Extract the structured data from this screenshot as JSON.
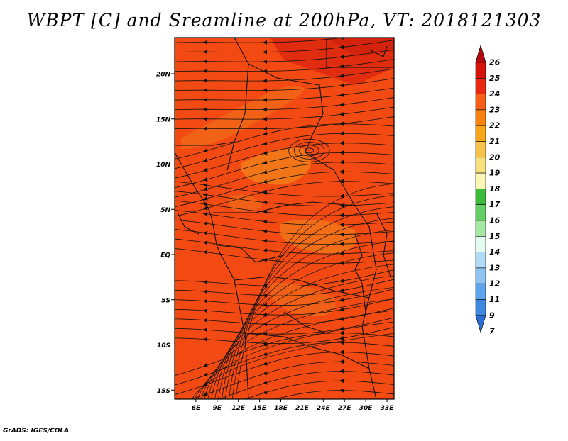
{
  "title": "WBPT [C] and Sreamline at 200hPa, VT: 2018121303",
  "credit": "GrADS: IGES/COLA",
  "map": {
    "lon_range": [
      3,
      34
    ],
    "lat_range": [
      -16,
      24
    ],
    "lat_ticks": [
      {
        "value": 20,
        "label": "20N"
      },
      {
        "value": 15,
        "label": "15N"
      },
      {
        "value": 10,
        "label": "10N"
      },
      {
        "value": 5,
        "label": "5N"
      },
      {
        "value": 0,
        "label": "EQ"
      },
      {
        "value": -5,
        "label": "5S"
      },
      {
        "value": -10,
        "label": "10S"
      },
      {
        "value": -15,
        "label": "15S"
      }
    ],
    "lon_ticks": [
      {
        "value": 6,
        "label": "6E"
      },
      {
        "value": 9,
        "label": "9E"
      },
      {
        "value": 12,
        "label": "12E"
      },
      {
        "value": 15,
        "label": "15E"
      },
      {
        "value": 18,
        "label": "18E"
      },
      {
        "value": 21,
        "label": "21E"
      },
      {
        "value": 24,
        "label": "24E"
      },
      {
        "value": 27,
        "label": "27E"
      },
      {
        "value": 30,
        "label": "30E"
      },
      {
        "value": 33,
        "label": "33E"
      }
    ],
    "base_color": "#f24a12"
  },
  "colorbar": {
    "levels": [
      "26",
      "25",
      "24",
      "23",
      "22",
      "21",
      "20",
      "19",
      "18",
      "17",
      "16",
      "15",
      "14",
      "13",
      "12",
      "11",
      "9",
      "7"
    ],
    "colors": [
      "#b40a0a",
      "#d4150c",
      "#ea2a10",
      "#f55f16",
      "#f88210",
      "#f7a51a",
      "#f7c24a",
      "#f9e07e",
      "#faf7b5",
      "#3cba3c",
      "#64d064",
      "#a6e8a2",
      "#e3fbf0",
      "#b1dbf6",
      "#8ec4f2",
      "#5ea4ec",
      "#3f88e2",
      "#2a6fd8"
    ]
  }
}
